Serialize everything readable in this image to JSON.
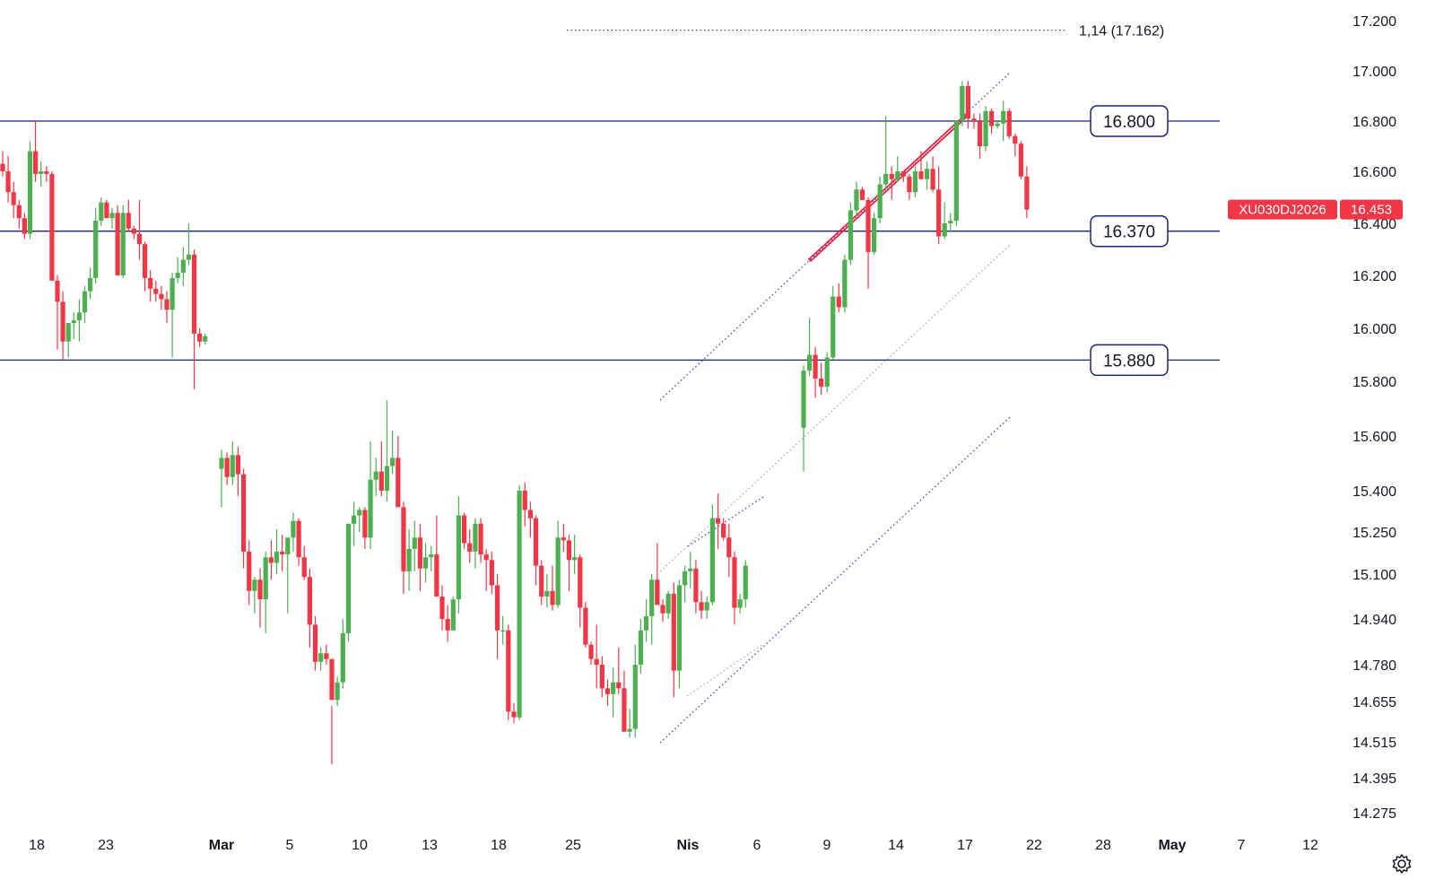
{
  "chart_data": {
    "type": "candlestick",
    "symbol": "XU030DJ2026",
    "last_price": "16.453",
    "colors": {
      "up": "#4caf50",
      "down": "#f23645",
      "level": "#1a237e",
      "trend": "#3f3fc8",
      "pattern": "#e0203c",
      "label_bg": "#f23645"
    },
    "y_axis": {
      "position": "right",
      "ticks": [
        "17.200",
        "17.000",
        "16.800",
        "16.600",
        "16.400",
        "16.200",
        "16.000",
        "15.800",
        "15.600",
        "15.400",
        "15.250",
        "15.100",
        "14.940",
        "14.780",
        "14.655",
        "14.515",
        "14.395",
        "14.275"
      ]
    },
    "x_axis": {
      "ticks": [
        "18",
        "23",
        "Mar",
        "5",
        "10",
        "13",
        "18",
        "25",
        "Nis",
        "6",
        "9",
        "14",
        "17",
        "22",
        "28",
        "May",
        "7",
        "12"
      ],
      "bold_ticks": [
        "Mar",
        "Nis",
        "May"
      ]
    },
    "levels": [
      {
        "label": "16.800",
        "value": 16800
      },
      {
        "label": "16.370",
        "value": 16370
      },
      {
        "label": "15.880",
        "value": 15880
      }
    ],
    "fib_extension": {
      "label": "1,14 (17.162)",
      "value": 17162
    },
    "candles_upper": [
      [
        16630,
        16680,
        16580,
        16600
      ],
      [
        16600,
        16660,
        16480,
        16520
      ],
      [
        16520,
        16560,
        16420,
        16470
      ],
      [
        16470,
        16490,
        16380,
        16420
      ],
      [
        16420,
        16440,
        16340,
        16360
      ],
      [
        16360,
        16720,
        16340,
        16680
      ],
      [
        16680,
        16800,
        16560,
        16590
      ],
      [
        16590,
        16640,
        16540,
        16600
      ],
      [
        16600,
        16620,
        16560,
        16590
      ],
      [
        16590,
        16600,
        16220,
        16180
      ],
      [
        16180,
        16200,
        15920,
        16100
      ],
      [
        16100,
        16140,
        15880,
        15950
      ],
      [
        15950,
        16020,
        15890,
        16020
      ],
      [
        16020,
        16060,
        15960,
        16030
      ],
      [
        16030,
        16110,
        15950,
        16060
      ],
      [
        16060,
        16160,
        16020,
        16140
      ],
      [
        16140,
        16230,
        16110,
        16190
      ],
      [
        16190,
        16460,
        16170,
        16410
      ],
      [
        16410,
        16500,
        16390,
        16480
      ],
      [
        16480,
        16490,
        16420,
        16420
      ],
      [
        16420,
        16460,
        16380,
        16440
      ],
      [
        16440,
        16470,
        16210,
        16200
      ],
      [
        16200,
        16470,
        16190,
        16440
      ],
      [
        16440,
        16490,
        16370,
        16380
      ],
      [
        16380,
        16390,
        16340,
        16360
      ],
      [
        16360,
        16490,
        16260,
        16320
      ],
      [
        16320,
        16330,
        16140,
        16190
      ],
      [
        16190,
        16220,
        16100,
        16150
      ],
      [
        16150,
        16180,
        16100,
        16130
      ],
      [
        16130,
        16160,
        16070,
        16110
      ],
      [
        16110,
        16140,
        16020,
        16070
      ],
      [
        16070,
        16210,
        15890,
        16190
      ],
      [
        16190,
        16270,
        16170,
        16210
      ],
      [
        16210,
        16310,
        16160,
        16260
      ],
      [
        16260,
        16400,
        16240,
        16280
      ],
      [
        16280,
        16300,
        15770,
        15980
      ],
      [
        15980,
        16000,
        15930,
        15950
      ],
      [
        15950,
        15980,
        15940,
        15970
      ]
    ],
    "candles_lower": [
      [
        15480,
        15550,
        15340,
        15520
      ],
      [
        15520,
        15540,
        15420,
        15450
      ],
      [
        15450,
        15580,
        15420,
        15530
      ],
      [
        15530,
        15560,
        15380,
        15460
      ],
      [
        15460,
        15480,
        15120,
        15180
      ],
      [
        15180,
        15220,
        14990,
        15040
      ],
      [
        15040,
        15090,
        14960,
        15080
      ],
      [
        15080,
        15120,
        14910,
        15010
      ],
      [
        15010,
        15180,
        14890,
        15160
      ],
      [
        15160,
        15220,
        15080,
        15140
      ],
      [
        15140,
        15260,
        15100,
        15180
      ],
      [
        15180,
        15240,
        15110,
        15170
      ],
      [
        15170,
        15210,
        14960,
        15230
      ],
      [
        15230,
        15320,
        15180,
        15290
      ],
      [
        15290,
        15300,
        15130,
        15160
      ],
      [
        15160,
        15200,
        15080,
        15090
      ],
      [
        15090,
        15120,
        14840,
        14920
      ],
      [
        14920,
        14950,
        14760,
        14790
      ],
      [
        14790,
        14840,
        14760,
        14820
      ],
      [
        14820,
        14850,
        14780,
        14800
      ],
      [
        14800,
        14640,
        14440,
        14660
      ],
      [
        14660,
        14740,
        14640,
        14720
      ],
      [
        14720,
        14940,
        14700,
        14890
      ],
      [
        14890,
        15130,
        14860,
        15280
      ],
      [
        15280,
        15360,
        15200,
        15310
      ],
      [
        15310,
        15340,
        15250,
        15330
      ],
      [
        15330,
        15340,
        15190,
        15230
      ],
      [
        15230,
        15580,
        15190,
        15440
      ],
      [
        15440,
        15520,
        15380,
        15470
      ],
      [
        15470,
        15580,
        15380,
        15400
      ],
      [
        15400,
        15730,
        15360,
        15490
      ],
      [
        15490,
        15620,
        15460,
        15520
      ],
      [
        15520,
        15600,
        15340,
        15340
      ],
      [
        15340,
        15360,
        15030,
        15110
      ],
      [
        15110,
        15260,
        15040,
        15190
      ],
      [
        15190,
        15290,
        15110,
        15230
      ],
      [
        15230,
        15280,
        15040,
        15120
      ],
      [
        15120,
        15210,
        15070,
        15160
      ],
      [
        15160,
        15200,
        15110,
        15170
      ],
      [
        15170,
        15310,
        15040,
        15020
      ],
      [
        15020,
        15060,
        14900,
        14940
      ],
      [
        14940,
        14990,
        14860,
        14900
      ],
      [
        14900,
        15020,
        14910,
        15010
      ],
      [
        15010,
        15380,
        14960,
        15310
      ],
      [
        15310,
        15320,
        15190,
        15210
      ],
      [
        15210,
        15260,
        15140,
        15180
      ],
      [
        15180,
        15300,
        15120,
        15280
      ],
      [
        15280,
        15300,
        15140,
        15170
      ],
      [
        15170,
        15190,
        15040,
        15150
      ],
      [
        15150,
        15180,
        15030,
        15060
      ],
      [
        15060,
        15100,
        14800,
        14900
      ],
      [
        14900,
        14950,
        14850,
        14900
      ],
      [
        14900,
        14920,
        14590,
        14620
      ],
      [
        14620,
        14650,
        14580,
        14600
      ],
      [
        14600,
        15420,
        14590,
        15400
      ],
      [
        15400,
        15430,
        15270,
        15330
      ],
      [
        15330,
        15360,
        15230,
        15300
      ],
      [
        15300,
        15310,
        15060,
        15130
      ],
      [
        15130,
        15150,
        14990,
        15020
      ],
      [
        15020,
        15100,
        14980,
        15040
      ],
      [
        15040,
        15130,
        14970,
        14990
      ],
      [
        14990,
        15290,
        14980,
        15230
      ],
      [
        15230,
        15280,
        15180,
        15220
      ],
      [
        15220,
        15240,
        15040,
        15150
      ],
      [
        15150,
        15240,
        15100,
        15160
      ],
      [
        15160,
        15170,
        14910,
        14980
      ],
      [
        14980,
        15000,
        14840,
        14850
      ],
      [
        14850,
        14860,
        14780,
        14800
      ],
      [
        14800,
        14920,
        14700,
        14780
      ],
      [
        14780,
        14810,
        14670,
        14700
      ],
      [
        14700,
        14730,
        14640,
        14680
      ],
      [
        14680,
        14770,
        14600,
        14720
      ],
      [
        14720,
        14840,
        14680,
        14700
      ],
      [
        14700,
        14760,
        14570,
        14550
      ],
      [
        14550,
        14630,
        14530,
        14560
      ],
      [
        14560,
        14850,
        14530,
        14780
      ],
      [
        14780,
        14940,
        14750,
        14900
      ],
      [
        14900,
        15010,
        14860,
        14950
      ],
      [
        14950,
        15100,
        14850,
        15080
      ],
      [
        15080,
        15210,
        15000,
        14990
      ],
      [
        14990,
        15010,
        14930,
        14960
      ],
      [
        14960,
        15040,
        14940,
        15030
      ],
      [
        15030,
        15070,
        14670,
        14760
      ],
      [
        14760,
        15080,
        14700,
        15060
      ],
      [
        15060,
        15130,
        15000,
        15110
      ],
      [
        15110,
        15180,
        15050,
        15120
      ],
      [
        15120,
        15150,
        14960,
        15000
      ],
      [
        15000,
        15040,
        14940,
        14970
      ],
      [
        14970,
        15020,
        14940,
        15000
      ],
      [
        15000,
        15350,
        14990,
        15300
      ],
      [
        15300,
        15390,
        15190,
        15280
      ],
      [
        15280,
        15300,
        15220,
        15230
      ],
      [
        15230,
        15280,
        15090,
        15160
      ],
      [
        15160,
        15180,
        14920,
        14980
      ],
      [
        14980,
        15030,
        14960,
        15010
      ],
      [
        15010,
        15150,
        14980,
        15130
      ]
    ],
    "candles_after_gap": [
      [
        15630,
        15860,
        15470,
        15840
      ],
      [
        15840,
        16040,
        15820,
        15900
      ],
      [
        15900,
        15930,
        15740,
        15810
      ],
      [
        15810,
        15870,
        15750,
        15780
      ],
      [
        15780,
        15910,
        15760,
        15890
      ],
      [
        15890,
        16160,
        15880,
        16120
      ],
      [
        16120,
        16170,
        16060,
        16080
      ],
      [
        16080,
        16280,
        16060,
        16260
      ],
      [
        16260,
        16480,
        16240,
        16450
      ],
      [
        16450,
        16560,
        16430,
        16530
      ],
      [
        16530,
        16540,
        16490,
        16490
      ],
      [
        16490,
        16500,
        16150,
        16290
      ],
      [
        16290,
        16440,
        16280,
        16420
      ],
      [
        16420,
        16580,
        16400,
        16550
      ],
      [
        16550,
        16820,
        16530,
        16590
      ],
      [
        16590,
        16620,
        16490,
        16570
      ],
      [
        16570,
        16660,
        16560,
        16600
      ],
      [
        16600,
        16600,
        16560,
        16580
      ],
      [
        16580,
        16590,
        16490,
        16520
      ],
      [
        16520,
        16620,
        16500,
        16600
      ],
      [
        16600,
        16680,
        16570,
        16570
      ],
      [
        16570,
        16640,
        16530,
        16610
      ],
      [
        16610,
        16660,
        16520,
        16530
      ],
      [
        16530,
        16620,
        16320,
        16350
      ],
      [
        16350,
        16480,
        16340,
        16400
      ],
      [
        16400,
        16440,
        16370,
        16410
      ],
      [
        16410,
        16790,
        16390,
        16800
      ],
      [
        16800,
        16960,
        16780,
        16940
      ],
      [
        16940,
        16960,
        16770,
        16810
      ],
      [
        16810,
        16830,
        16770,
        16800
      ],
      [
        16800,
        16830,
        16650,
        16700
      ],
      [
        16700,
        16860,
        16680,
        16840
      ],
      [
        16840,
        16850,
        16750,
        16780
      ],
      [
        16780,
        16800,
        16770,
        16790
      ],
      [
        16790,
        16880,
        16720,
        16840
      ],
      [
        16840,
        16850,
        16730,
        16740
      ],
      [
        16740,
        16750,
        16660,
        16710
      ],
      [
        16710,
        16720,
        16570,
        16580
      ],
      [
        16580,
        16620,
        16420,
        16453
      ]
    ]
  }
}
